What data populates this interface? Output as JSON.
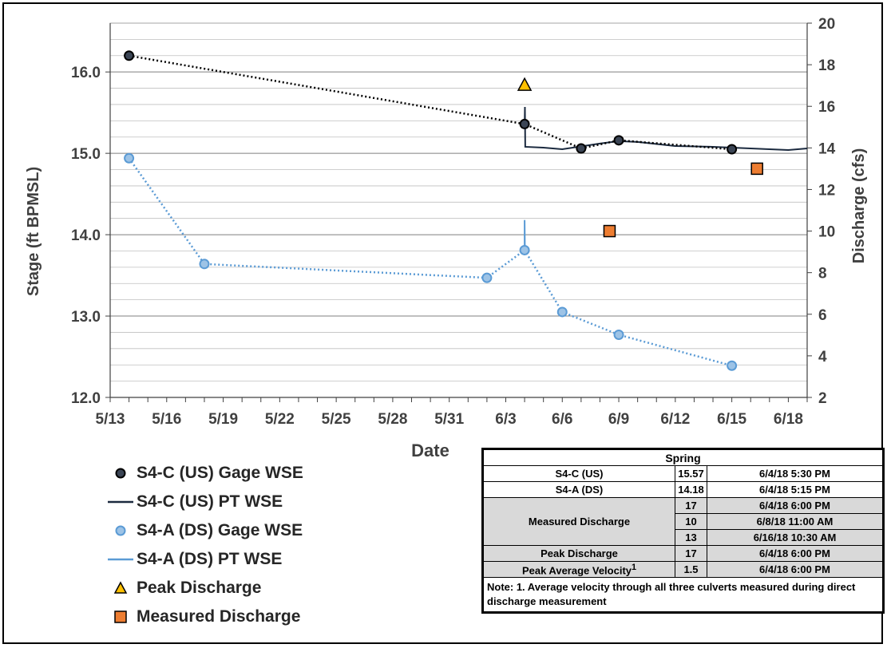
{
  "chart_data": {
    "type": "line",
    "xlabel": "Date",
    "ylabel": "Stage (ft BPMSL)",
    "y2label": "Discharge (cfs)",
    "ylim": [
      12.0,
      16.6
    ],
    "y2lim": [
      2,
      20
    ],
    "grid": true,
    "x_tick_labels": [
      "5/13",
      "5/16",
      "5/19",
      "5/22",
      "5/25",
      "5/28",
      "5/31",
      "6/3",
      "6/6",
      "6/9",
      "6/12",
      "6/15",
      "6/18"
    ],
    "y_tick_labels": [
      "12.0",
      "13.0",
      "14.0",
      "15.0",
      "16.0"
    ],
    "y2_tick_labels": [
      "2",
      "4",
      "6",
      "8",
      "10",
      "12",
      "14",
      "16",
      "18",
      "20"
    ],
    "series": [
      {
        "name": "S4-C (US) Gage WSE",
        "axis": "left",
        "color": "#1b2a3f",
        "x": [
          "2018-05-14",
          "2018-06-04",
          "2018-06-07",
          "2018-06-09",
          "2018-06-15"
        ],
        "y": [
          16.2,
          15.36,
          15.06,
          15.16,
          15.05
        ]
      },
      {
        "name": "S4-C (US) PT WSE",
        "axis": "left",
        "color": "#1b2a3f",
        "x": [
          "2018-06-04",
          "2018-06-04",
          "2018-06-04",
          "2018-06-05",
          "2018-06-06",
          "2018-06-08",
          "2018-06-09",
          "2018-06-10",
          "2018-06-12",
          "2018-06-14",
          "2018-06-16",
          "2018-06-18",
          "2018-06-19"
        ],
        "y": [
          15.3,
          15.57,
          15.08,
          15.07,
          15.05,
          15.12,
          15.15,
          15.14,
          15.09,
          15.08,
          15.06,
          15.04,
          15.06
        ]
      },
      {
        "name": "S4-A (DS) Gage WSE",
        "axis": "left",
        "color": "#5b9bd5",
        "x": [
          "2018-05-14",
          "2018-05-18",
          "2018-06-02",
          "2018-06-04",
          "2018-06-06",
          "2018-06-09",
          "2018-06-15"
        ],
        "y": [
          14.94,
          13.64,
          13.47,
          13.81,
          13.05,
          12.77,
          12.39
        ]
      },
      {
        "name": "S4-A (DS) PT WSE",
        "axis": "left",
        "color": "#5b9bd5",
        "x": [
          "2018-06-04",
          "2018-06-04",
          "2018-06-04"
        ],
        "y": [
          13.75,
          14.18,
          13.8
        ]
      },
      {
        "name": "Peak Discharge",
        "axis": "right",
        "color": "#ffc000",
        "x": [
          "2018-06-04"
        ],
        "y": [
          17
        ]
      },
      {
        "name": "Measured Discharge",
        "axis": "right",
        "color": "#ed7d31",
        "x": [
          "2018-06-04",
          "2018-06-08",
          "2018-06-16"
        ],
        "y": [
          17,
          10,
          13
        ]
      }
    ]
  },
  "summary_table": {
    "title": "Spring",
    "us_label": "S4-C (US)",
    "us_value": "15.57",
    "us_time": "6/4/18 5:30 PM",
    "ds_label": "S4-A (DS)",
    "ds_value": "14.18",
    "ds_time": "6/4/18 5:15 PM",
    "measured_label": "Measured Discharge",
    "measured": [
      {
        "value": "17",
        "time": "6/4/18 6:00 PM"
      },
      {
        "value": "10",
        "time": "6/8/18 11:00 AM"
      },
      {
        "value": "13",
        "time": "6/16/18 10:30 AM"
      }
    ],
    "peak_label": "Peak Discharge",
    "peak_value": "17",
    "peak_time": "6/4/18 6:00 PM",
    "velocity_label": "Peak Average Velocity",
    "velocity_sup": "1",
    "velocity_value": "1.5",
    "velocity_time": "6/4/18 6:00 PM",
    "note": "Note: 1. Average velocity through all three culverts measured during direct discharge measurement"
  }
}
